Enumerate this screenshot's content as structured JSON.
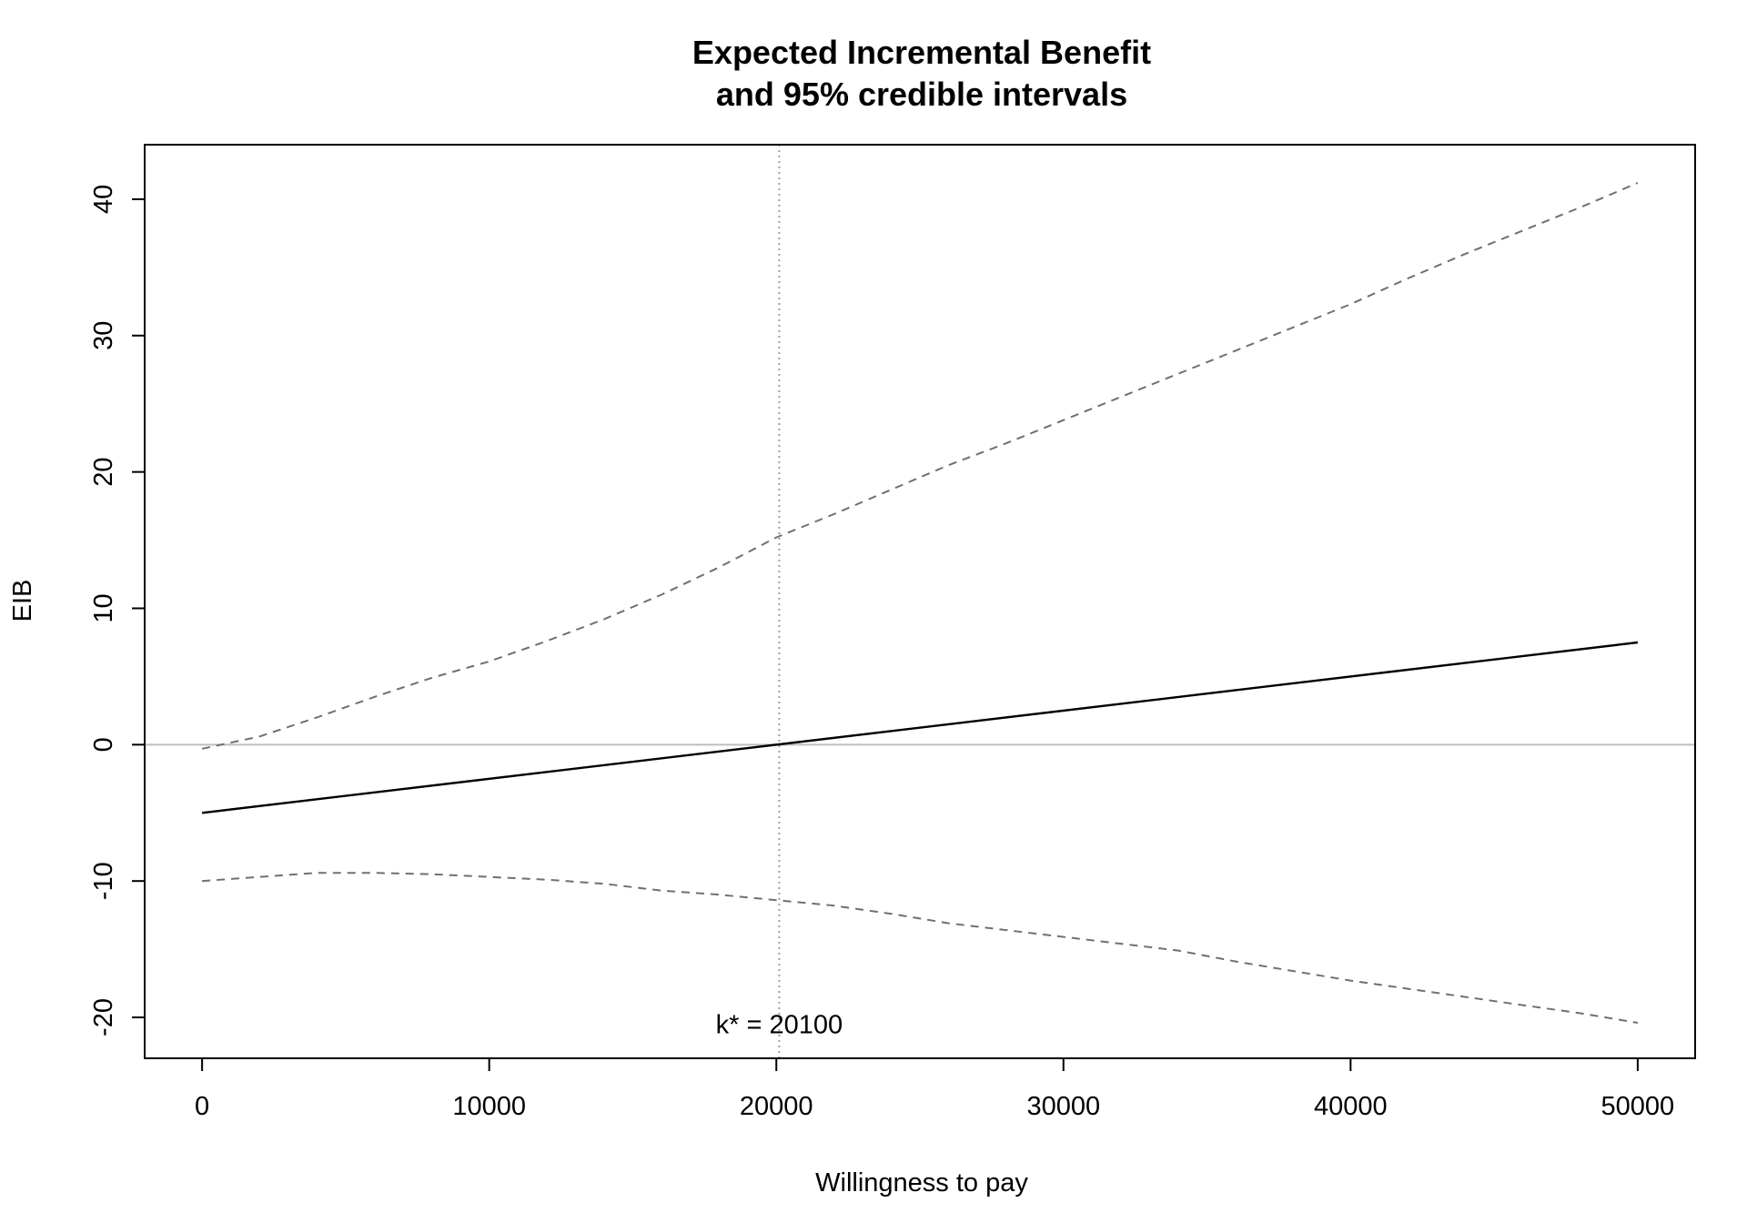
{
  "chart_data": {
    "type": "line",
    "title": "Expected Incremental Benefit",
    "subtitle": "and 95% credible intervals",
    "xlabel": "Willingness to pay",
    "ylabel": "EIB",
    "xlim": [
      -2000,
      52000
    ],
    "ylim": [
      -23,
      44
    ],
    "x_ticks": [
      0,
      10000,
      20000,
      30000,
      40000,
      50000
    ],
    "x_tick_labels": [
      "0",
      "10000",
      "20000",
      "30000",
      "40000",
      "50000"
    ],
    "y_ticks": [
      -20,
      -10,
      0,
      10,
      20,
      30,
      40
    ],
    "y_tick_labels": [
      "-20",
      "-10",
      "0",
      "10",
      "20",
      "30",
      "40"
    ],
    "grid": false,
    "reference_lines": {
      "horizontal_y": 0,
      "vertical_x": 20100,
      "horizontal_color": "#bebebe",
      "vertical_color": "#a0a0a0"
    },
    "annotation": {
      "text": "k* = 20100",
      "x": 20100,
      "y": -20.5
    },
    "series": [
      {
        "style": "solid",
        "color": "#000000",
        "x": [
          0,
          50000
        ],
        "y": [
          -5.0,
          7.5
        ]
      },
      {
        "style": "dashed",
        "color": "#707070",
        "x": [
          0,
          2000,
          4000,
          6000,
          8000,
          10000,
          12000,
          14000,
          16000,
          18000,
          20000,
          22000,
          24000,
          26000,
          28000,
          30000,
          32000,
          34000,
          36000,
          38000,
          40000,
          42000,
          44000,
          46000,
          48000,
          50000
        ],
        "y": [
          -0.3,
          0.6,
          2.0,
          3.5,
          4.9,
          6.1,
          7.6,
          9.2,
          11.0,
          13.0,
          15.2,
          16.9,
          18.7,
          20.5,
          22.1,
          23.8,
          25.5,
          27.2,
          28.9,
          30.6,
          32.3,
          34.2,
          36.0,
          37.7,
          39.4,
          41.2
        ]
      },
      {
        "style": "dashed",
        "color": "#707070",
        "x": [
          0,
          2000,
          4000,
          6000,
          8000,
          10000,
          12000,
          14000,
          16000,
          18000,
          20000,
          22000,
          24000,
          26000,
          28000,
          30000,
          32000,
          34000,
          36000,
          38000,
          40000,
          42000,
          44000,
          46000,
          48000,
          50000
        ],
        "y": [
          -10.0,
          -9.7,
          -9.4,
          -9.4,
          -9.5,
          -9.7,
          -9.9,
          -10.2,
          -10.7,
          -11.0,
          -11.4,
          -11.8,
          -12.4,
          -13.1,
          -13.6,
          -14.1,
          -14.6,
          -15.1,
          -15.9,
          -16.6,
          -17.3,
          -17.9,
          -18.5,
          -19.1,
          -19.7,
          -20.4
        ]
      }
    ]
  }
}
